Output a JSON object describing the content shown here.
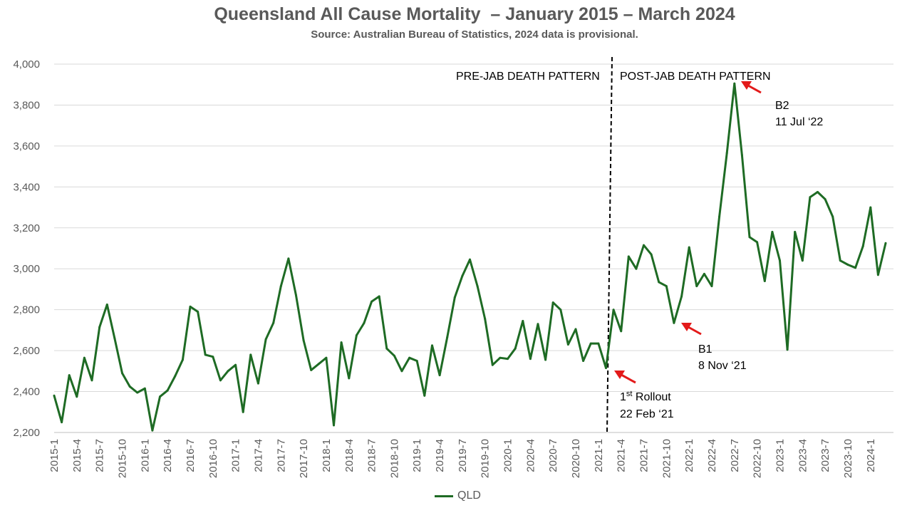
{
  "chart_data": {
    "type": "line",
    "title": "Queensland All Cause Mortality  – January 2015 – March 2024",
    "subtitle": "Source: Australian Bureau of Statistics, 2024 data is provisional.",
    "xlabel": "",
    "ylabel": "",
    "ylim": [
      2200,
      4000
    ],
    "yticks": [
      "2,200",
      "2,400",
      "2,600",
      "2,800",
      "3,000",
      "3,200",
      "3,400",
      "3,600",
      "3,800",
      "4,000"
    ],
    "grid": true,
    "legend_position": "bottom",
    "line_color": "#1e6b24",
    "categories": [
      "2015-1",
      "2015-2",
      "2015-3",
      "2015-4",
      "2015-5",
      "2015-6",
      "2015-7",
      "2015-8",
      "2015-9",
      "2015-10",
      "2015-11",
      "2015-12",
      "2016-1",
      "2016-2",
      "2016-3",
      "2016-4",
      "2016-5",
      "2016-6",
      "2016-7",
      "2016-8",
      "2016-9",
      "2016-10",
      "2016-11",
      "2016-12",
      "2017-1",
      "2017-2",
      "2017-3",
      "2017-4",
      "2017-5",
      "2017-6",
      "2017-7",
      "2017-8",
      "2017-9",
      "2017-10",
      "2017-11",
      "2017-12",
      "2018-1",
      "2018-2",
      "2018-3",
      "2018-4",
      "2018-5",
      "2018-6",
      "2018-7",
      "2018-8",
      "2018-9",
      "2018-10",
      "2018-11",
      "2018-12",
      "2019-1",
      "2019-2",
      "2019-3",
      "2019-4",
      "2019-5",
      "2019-6",
      "2019-7",
      "2019-8",
      "2019-9",
      "2019-10",
      "2019-11",
      "2019-12",
      "2020-1",
      "2020-2",
      "2020-3",
      "2020-4",
      "2020-5",
      "2020-6",
      "2020-7",
      "2020-8",
      "2020-9",
      "2020-10",
      "2020-11",
      "2020-12",
      "2021-1",
      "2021-2",
      "2021-3",
      "2021-4",
      "2021-5",
      "2021-6",
      "2021-7",
      "2021-8",
      "2021-9",
      "2021-10",
      "2021-11",
      "2021-12",
      "2022-1",
      "2022-2",
      "2022-3",
      "2022-4",
      "2022-5",
      "2022-6",
      "2022-7",
      "2022-8",
      "2022-9",
      "2022-10",
      "2022-11",
      "2022-12",
      "2023-1",
      "2023-2",
      "2023-3",
      "2023-4",
      "2023-5",
      "2023-6",
      "2023-7",
      "2023-8",
      "2023-9",
      "2023-10",
      "2023-11",
      "2023-12",
      "2024-1",
      "2024-2",
      "2024-3"
    ],
    "xtick_labels": [
      "2015-1",
      "2015-4",
      "2015-7",
      "2015-10",
      "2016-1",
      "2016-4",
      "2016-7",
      "2016-10",
      "2017-1",
      "2017-4",
      "2017-7",
      "2017-10",
      "2018-1",
      "2018-4",
      "2018-7",
      "2018-10",
      "2019-1",
      "2019-4",
      "2019-7",
      "2019-10",
      "2020-1",
      "2020-4",
      "2020-7",
      "2020-10",
      "2021-1",
      "2021-4",
      "2021-7",
      "2021-10",
      "2022-1",
      "2022-4",
      "2022-7",
      "2022-10",
      "2023-1",
      "2023-4",
      "2023-7",
      "2023-10",
      "2024-1"
    ],
    "series": [
      {
        "name": "QLD",
        "values": [
          2380,
          2250,
          2480,
          2375,
          2565,
          2455,
          2715,
          2825,
          2660,
          2490,
          2425,
          2395,
          2415,
          2210,
          2375,
          2405,
          2475,
          2555,
          2815,
          2790,
          2580,
          2570,
          2455,
          2500,
          2530,
          2300,
          2580,
          2440,
          2655,
          2735,
          2915,
          3050,
          2870,
          2650,
          2505,
          2535,
          2565,
          2235,
          2640,
          2465,
          2675,
          2735,
          2840,
          2865,
          2610,
          2575,
          2500,
          2565,
          2550,
          2380,
          2625,
          2480,
          2665,
          2860,
          2965,
          3045,
          2915,
          2755,
          2530,
          2565,
          2560,
          2610,
          2745,
          2560,
          2730,
          2555,
          2835,
          2800,
          2630,
          2705,
          2550,
          2635,
          2635,
          2515,
          2800,
          2695,
          3060,
          3000,
          3115,
          3070,
          2935,
          2915,
          2735,
          2865,
          3105,
          2915,
          2975,
          2915,
          3255,
          3565,
          3905,
          3555,
          3155,
          3130,
          2940,
          3180,
          3040,
          2605,
          3180,
          3040,
          3350,
          3375,
          3340,
          3255,
          3040,
          3020,
          3005,
          3110,
          3300,
          2970,
          3125
        ]
      }
    ],
    "annotations": {
      "pre_jab": "PRE-JAB DEATH PATTERN",
      "post_jab": "POST-JAB DEATH PATTERN",
      "rollout_title": "1",
      "rollout_sup": "st",
      "rollout_rest": " Rollout",
      "rollout_date": "22 Feb ‘21",
      "b1_title": "B1",
      "b1_date": "8 Nov ‘21",
      "b2_title": "B2",
      "b2_date": "11 Jul ‘22"
    }
  }
}
